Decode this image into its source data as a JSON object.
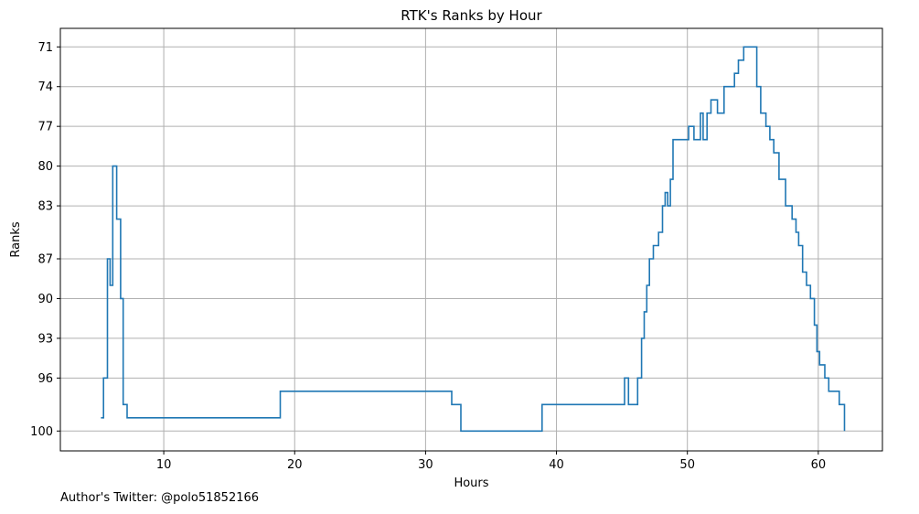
{
  "footer_text": "Author's Twitter: @polo51852166",
  "colors": {
    "line": "#1f77b4",
    "grid": "#b0b0b0",
    "axes": "#000000"
  },
  "chart_data": {
    "type": "line",
    "drawstyle": "steps-post",
    "title": "RTK's Ranks by Hour",
    "xlabel": "Hours",
    "ylabel": "Ranks",
    "xlim": [
      2.1,
      64.9
    ],
    "ylim": [
      101.5,
      69.6
    ],
    "y_inverted": true,
    "grid": true,
    "x_ticks": [
      10,
      20,
      30,
      40,
      50,
      60
    ],
    "y_ticks": [
      71,
      74,
      77,
      80,
      83,
      87,
      90,
      93,
      96,
      100
    ],
    "series": [
      {
        "x": [
          5.2,
          5.4,
          5.7,
          5.9,
          6.1,
          6.4,
          6.7,
          6.9,
          7.2,
          18.9,
          32.0,
          32.7,
          38.9,
          45.2,
          45.5,
          46.2,
          46.5,
          46.7,
          46.9,
          47.1,
          47.4,
          47.8,
          48.1,
          48.3,
          48.5,
          48.7,
          48.9,
          49.1,
          50.1,
          50.5,
          51.0,
          51.2,
          51.5,
          51.8,
          52.3,
          52.8,
          53.6,
          53.9,
          54.3,
          55.3,
          55.6,
          56.0,
          56.3,
          56.6,
          57.0,
          57.5,
          58.0,
          58.3,
          58.5,
          58.8,
          59.1,
          59.4,
          59.7,
          59.9,
          60.1,
          60.5,
          60.8,
          61.6,
          62.0
        ],
        "y": [
          99,
          96,
          87,
          89,
          80,
          84,
          90,
          98,
          99,
          97,
          98,
          100,
          98,
          96,
          98,
          96,
          93,
          91,
          89,
          87,
          86,
          85,
          83,
          82,
          83,
          81,
          78,
          78,
          77,
          78,
          76,
          78,
          76,
          75,
          76,
          74,
          73,
          72,
          71,
          74,
          76,
          77,
          78,
          79,
          81,
          83,
          84,
          85,
          86,
          88,
          89,
          90,
          92,
          94,
          95,
          96,
          97,
          98,
          100
        ]
      }
    ]
  }
}
